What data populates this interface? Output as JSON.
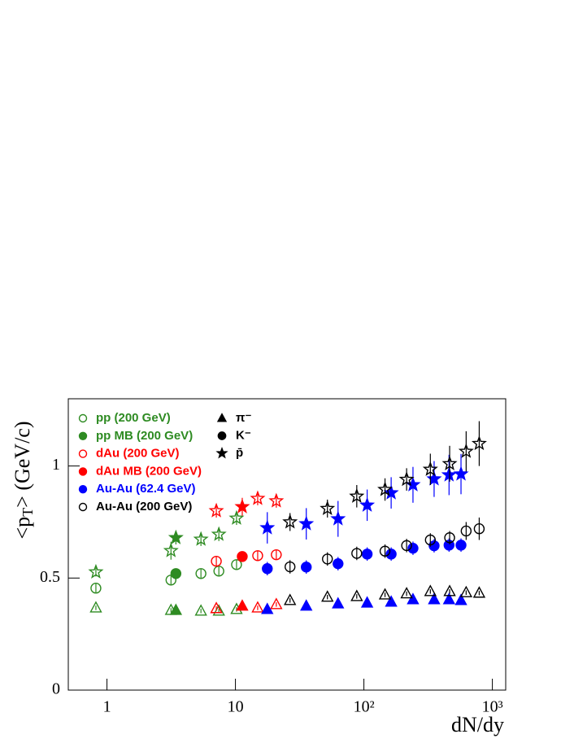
{
  "chart_data": {
    "type": "scatter",
    "log_x": true,
    "xlabel": "dN/dy",
    "ylabel": [
      "<p",
      "T",
      "> (GeV/c)"
    ],
    "xlim": [
      0.5,
      1270
    ],
    "ylim": [
      0,
      1.3
    ],
    "xticks": [
      1,
      10,
      {
        "value": 100,
        "label": "10²"
      },
      {
        "value": 1000,
        "label": "10³"
      }
    ],
    "yticks": [
      0,
      0.5,
      1
    ],
    "particles": [
      {
        "key": "pi",
        "name": "π⁻",
        "marker": "triangle"
      },
      {
        "key": "K",
        "name": "K⁻",
        "marker": "circle"
      },
      {
        "key": "pbar",
        "name": "p̄",
        "marker": "star"
      }
    ],
    "series": [
      {
        "name": "pp (200 GeV)",
        "color": "#2e8b22",
        "filled": false,
        "x": [
          0.82,
          3.15,
          5.39,
          7.43,
          10.2
        ],
        "pi": [
          0.367,
          0.356,
          0.353,
          0.353,
          0.36
        ],
        "pi_err": [
          0.01,
          0.01,
          0.01,
          0.01,
          0.01
        ],
        "K": [
          0.455,
          0.491,
          0.52,
          0.531,
          0.56
        ],
        "K_err": [
          0.02,
          0.02,
          0.02,
          0.02,
          0.02
        ],
        "pbar": [
          0.527,
          0.622,
          0.673,
          0.695,
          0.767
        ],
        "pbar_err": [
          0.02,
          0.04,
          0.03,
          0.03,
          0.03
        ]
      },
      {
        "name": "pp MB (200 GeV)",
        "color": "#2e8b22",
        "filled": true,
        "x": [
          3.44
        ],
        "pi": [
          0.356
        ],
        "pi_err": [
          0.01
        ],
        "K": [
          0.52
        ],
        "K_err": [
          0.01
        ],
        "pbar": [
          0.68
        ],
        "pbar_err": [
          0.03
        ]
      },
      {
        "name": "dAu (200 GeV)",
        "color": "#ff0000",
        "filled": false,
        "x": [
          7.1,
          14.9,
          20.8
        ],
        "pi": [
          0.364,
          0.367,
          0.382
        ],
        "pi_err": [
          0.01,
          0.01,
          0.01
        ],
        "K": [
          0.575,
          0.6,
          0.604
        ],
        "K_err": [
          0.02,
          0.02,
          0.02
        ],
        "pbar": [
          0.8,
          0.855,
          0.844
        ],
        "pbar_err": [
          0.03,
          0.03,
          0.03
        ]
      },
      {
        "name": "dAu MB (200 GeV)",
        "color": "#ff0000",
        "filled": true,
        "x": [
          11.3
        ],
        "pi": [
          0.375
        ],
        "pi_err": [
          0.01
        ],
        "K": [
          0.596
        ],
        "K_err": [
          0.01
        ],
        "pbar": [
          0.818
        ],
        "pbar_err": [
          0.04
        ]
      },
      {
        "name": "Au-Au (62.4 GeV)",
        "color": "#0000ff",
        "filled": true,
        "x": [
          17.7,
          35.6,
          62.9,
          106,
          163,
          241,
          352,
          460,
          570
        ],
        "pi": [
          0.36,
          0.375,
          0.385,
          0.389,
          0.393,
          0.404,
          0.404,
          0.404,
          0.4
        ],
        "pi_err": [
          0.01,
          0.01,
          0.01,
          0.01,
          0.01,
          0.01,
          0.01,
          0.01,
          0.01
        ],
        "K": [
          0.542,
          0.549,
          0.564,
          0.607,
          0.607,
          0.633,
          0.644,
          0.647,
          0.647
        ],
        "K_err": [
          0.03,
          0.03,
          0.03,
          0.03,
          0.03,
          0.03,
          0.03,
          0.03,
          0.03
        ],
        "pbar": [
          0.724,
          0.742,
          0.764,
          0.825,
          0.88,
          0.916,
          0.942,
          0.96,
          0.964
        ],
        "pbar_err": [
          0.07,
          0.07,
          0.08,
          0.07,
          0.07,
          0.08,
          0.08,
          0.09,
          0.09
        ]
      },
      {
        "name": "Au-Au (200 GeV)",
        "color": "#000000",
        "filled": false,
        "x": [
          26.6,
          52,
          88,
          146,
          215,
          329,
          465,
          625,
          790
        ],
        "pi": [
          0.4,
          0.415,
          0.418,
          0.425,
          0.43,
          0.44,
          0.44,
          0.435,
          0.433
        ],
        "pi_err": [
          0.01,
          0.01,
          0.01,
          0.01,
          0.01,
          0.01,
          0.01,
          0.01,
          0.01
        ],
        "K": [
          0.55,
          0.585,
          0.61,
          0.62,
          0.645,
          0.67,
          0.68,
          0.71,
          0.72
        ],
        "K_err": [
          0.03,
          0.03,
          0.03,
          0.03,
          0.03,
          0.03,
          0.03,
          0.04,
          0.05
        ],
        "pbar": [
          0.75,
          0.81,
          0.865,
          0.895,
          0.94,
          0.985,
          1.01,
          1.065,
          1.1
        ],
        "pbar_err": [
          0.04,
          0.04,
          0.05,
          0.05,
          0.05,
          0.07,
          0.08,
          0.09,
          0.1
        ]
      }
    ]
  }
}
